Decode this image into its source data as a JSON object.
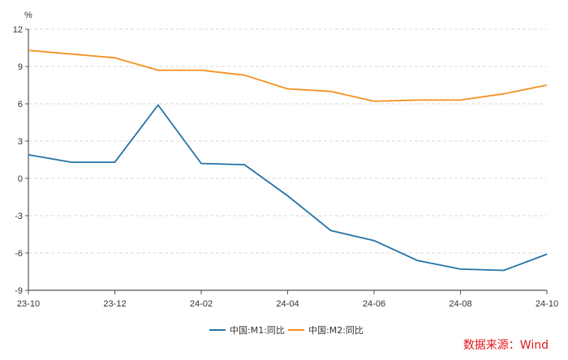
{
  "chart_data": {
    "type": "line",
    "unit": "%",
    "categories": [
      "23-10",
      "23-11",
      "23-12",
      "24-01",
      "24-02",
      "24-03",
      "24-04",
      "24-05",
      "24-06",
      "24-07",
      "24-08",
      "24-09",
      "24-10"
    ],
    "x_tick_labels": [
      "23-10",
      "23-12",
      "24-02",
      "24-04",
      "24-06",
      "24-08",
      "24-10"
    ],
    "y_ticks": [
      12,
      9,
      6,
      3,
      0,
      -3,
      -6,
      -9
    ],
    "ylim": [
      -9,
      12
    ],
    "grid": true,
    "legend_position": "bottom-center",
    "series": [
      {
        "name": "中国:M1:同比",
        "color": "#2372a8",
        "values": [
          1.9,
          1.3,
          1.3,
          5.9,
          1.2,
          1.1,
          -1.4,
          -4.2,
          -5.0,
          -6.6,
          -7.3,
          -7.4,
          -6.1
        ]
      },
      {
        "name": "中国:M2:同比",
        "color": "#f5901e",
        "values": [
          10.3,
          10.0,
          9.7,
          8.7,
          8.7,
          8.3,
          7.2,
          7.0,
          6.2,
          6.3,
          6.3,
          6.8,
          7.5
        ]
      }
    ],
    "source_note": "数据来源：Wind",
    "source_color": "#e0161d"
  }
}
